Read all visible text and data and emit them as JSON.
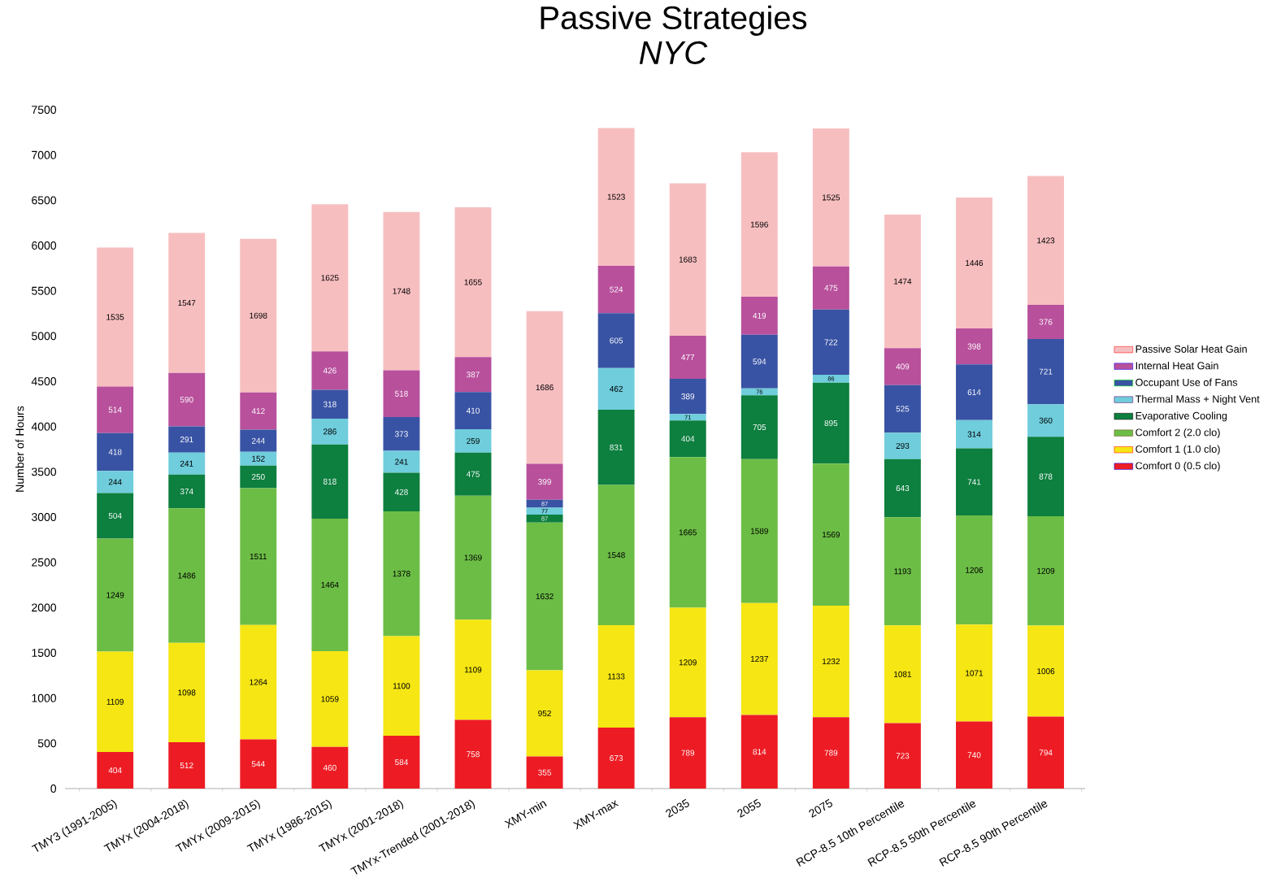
{
  "chart_data": {
    "type": "bar",
    "title": "Passive Strategies",
    "subtitle": "*NYC*",
    "ylabel": "Number of Hours",
    "categories": [
      "TMY3 (1991-2005)",
      "TMYx (2004-2018)",
      "TMYx (2009-2015)",
      "TMYx (1986-2015)",
      "TMYx (2001-2018)",
      "TMYx-Trended (2001-2018)",
      "XMY-min",
      "XMY-max",
      "2035",
      "2055",
      "2075",
      "RCP-8.5 10th Percentile",
      "RCP-8.5 50th Percentile",
      "RCP-8.5 90th Percentile"
    ],
    "stacked": true,
    "data_labels": true,
    "legend": "right",
    "grid": false,
    "ylim": [
      0,
      7500
    ],
    "yticks": [
      0,
      500,
      1000,
      1500,
      2000,
      2500,
      3000,
      3500,
      4000,
      4500,
      5000,
      5500,
      6000,
      6500,
      7000,
      7500
    ],
    "series": [
      {
        "name": "Comfort 0 (0.5 clo)",
        "color": "#ed1c24",
        "values": [
          404,
          512,
          544,
          460,
          584,
          758,
          355,
          673,
          789,
          814,
          789,
          723,
          740,
          794
        ]
      },
      {
        "name": "Comfort 1 (1.0 clo)",
        "color": "#f5e614",
        "values": [
          1109,
          1098,
          1264,
          1059,
          1100,
          1109,
          952,
          1133,
          1209,
          1237,
          1232,
          1081,
          1071,
          1006
        ]
      },
      {
        "name": "Comfort 2 (2.0 clo)",
        "color": "#6cbd45",
        "values": [
          1249,
          1486,
          1511,
          1464,
          1378,
          1369,
          1632,
          1548,
          1665,
          1589,
          1569,
          1193,
          1206,
          1209
        ]
      },
      {
        "name": "Evaporative Cooling",
        "color": "#0d7f3f",
        "values": [
          504,
          374,
          250,
          818,
          428,
          475,
          87,
          831,
          404,
          705,
          895,
          643,
          741,
          878
        ]
      },
      {
        "name": "Thermal Mass + Night Vent",
        "color": "#6fcddc",
        "values": [
          244,
          241,
          152,
          286,
          241,
          259,
          77,
          462,
          71,
          76,
          86,
          293,
          314,
          360
        ]
      },
      {
        "name": "Occupant Use of Fans",
        "color": "#3953a4",
        "values": [
          418,
          291,
          244,
          318,
          373,
          410,
          87,
          605,
          389,
          594,
          722,
          525,
          614,
          721
        ]
      },
      {
        "name": "Internal Heat Gain",
        "color": "#b8509c",
        "values": [
          514,
          590,
          412,
          426,
          518,
          387,
          399,
          524,
          477,
          419,
          475,
          409,
          398,
          376
        ]
      },
      {
        "name": "Passive Solar Heat Gain",
        "color": "#f7bec0",
        "values": [
          1535,
          1547,
          1698,
          1625,
          1748,
          1655,
          1686,
          1523,
          1683,
          1596,
          1525,
          1474,
          1446,
          1423
        ]
      }
    ]
  }
}
